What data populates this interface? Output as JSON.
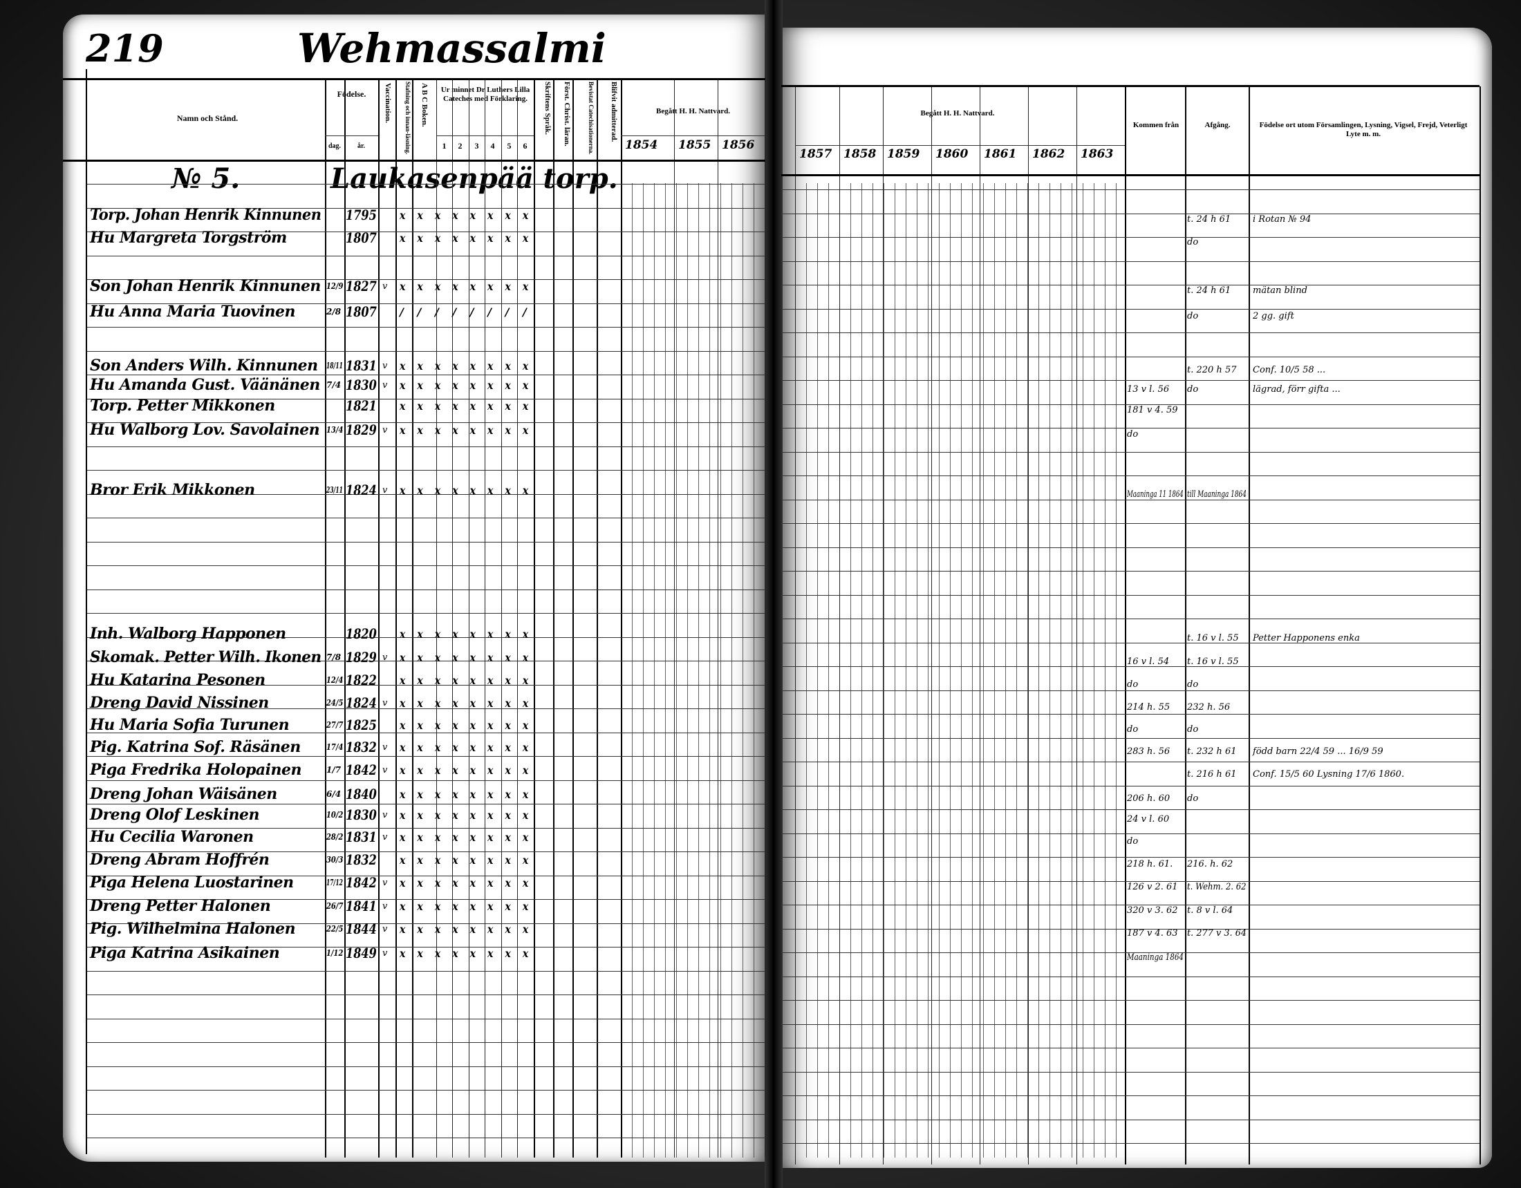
{
  "header": {
    "page_number": "219",
    "parish": "Wehmassalmi",
    "household_number": "№ 5.",
    "household_place": "Laukasenpää torp."
  },
  "left_columns": {
    "name": "Namn och Stånd.",
    "birth": "Födelse.",
    "birth_day": "dag.",
    "birth_year": "år.",
    "vaccination": "Vaccination.",
    "reading": "Stafning och innan-läsning.",
    "abc": "A B C Boken.",
    "catechism": "Ur minnet Dr Luthers Lilla Cateches med Förklaring.",
    "catechism_parts": [
      "1",
      "2",
      "3",
      "4",
      "5",
      "6"
    ],
    "scripture": "Skriftens Språk.",
    "christianity": "Först. Christ. läran.",
    "confirmation_class": "Bevistat Catechisationerna.",
    "admitted": "Blifvit admitterad.",
    "communion": "Begått H. H. Nattvard.",
    "years": [
      "1854",
      "1855",
      "1856"
    ]
  },
  "right_columns": {
    "communion": "Begått H. H. Nattvard.",
    "years": [
      "1857",
      "1858",
      "1859",
      "1860",
      "1861",
      "1862",
      "1863"
    ],
    "arrived_from": "Kommen från",
    "departure": "Afgång.",
    "remarks": "Födelse ort utom Församlingen, Lysning, Vigsel, Frejd, Veterligt Lyte m. m."
  },
  "rows": [
    {
      "name": "Torp. Johan Henrik Kinnunen",
      "day": "",
      "year": "1795",
      "vacc": "",
      "marks": "x x x x x x x x",
      "arrived": "",
      "departed": "t. 24 h 61",
      "remark": "i Rotan № 94"
    },
    {
      "name": "Hu Margreta Torgström",
      "day": "",
      "year": "1807",
      "vacc": "",
      "marks": "x x x x x x x x",
      "arrived": "",
      "departed": "do",
      "remark": ""
    },
    {
      "name": "Son Johan Henrik Kinnunen",
      "day": "12/9",
      "year": "1827",
      "vacc": "v",
      "marks": "x x x x x x x x",
      "arrived": "",
      "departed": "t. 24 h 61",
      "remark": "mätan blind"
    },
    {
      "name": "Hu Anna Maria Tuovinen",
      "day": "2/8",
      "year": "1807",
      "vacc": "",
      "marks": "/ / / / / / / /",
      "arrived": "",
      "departed": "do",
      "remark": "2 gg. gift"
    },
    {
      "name": "Son Anders Wilh. Kinnunen",
      "day": "18/11",
      "year": "1831",
      "vacc": "v",
      "marks": "x x x x x x x x",
      "arrived": "",
      "departed": "t. 220 h 57",
      "remark": "Conf. 10/5 58 ..."
    },
    {
      "name": "Hu Amanda Gust. Väänänen",
      "day": "7/4",
      "year": "1830",
      "vacc": "v",
      "marks": "x x x x x x x x",
      "arrived": "13 v l. 56",
      "departed": "do",
      "remark": "lägrad, förr gifta ..."
    },
    {
      "name": "Torp. Petter Mikkonen",
      "day": "",
      "year": "1821",
      "vacc": "",
      "marks": "x x x x x x x x",
      "arrived": "181 v 4. 59",
      "departed": "",
      "remark": ""
    },
    {
      "name": "Hu Walborg Lov. Savolainen",
      "day": "13/4",
      "year": "1829",
      "vacc": "v",
      "marks": "x x x x x x x x",
      "arrived": "do",
      "departed": "",
      "remark": ""
    },
    {
      "name": "Bror Erik Mikkonen",
      "day": "23/11",
      "year": "1824",
      "vacc": "v",
      "marks": "x x x x x x x x",
      "arrived": "Maaninga 11 1864",
      "departed": "till Maaninga 1864",
      "remark": ""
    },
    {
      "name": "Inh. Walborg Happonen",
      "day": "",
      "year": "1820",
      "vacc": "",
      "marks": "x x x x x x x x",
      "arrived": "",
      "departed": "t. 16 v l. 55",
      "remark": "Petter Happonens enka"
    },
    {
      "name": "Skomak. Petter Wilh. Ikonen",
      "day": "7/8",
      "year": "1829",
      "vacc": "v",
      "marks": "x x x x x x x x",
      "arrived": "16 v l. 54",
      "departed": "t. 16 v l. 55",
      "remark": ""
    },
    {
      "name": "Hu Katarina Pesonen",
      "day": "12/4",
      "year": "1822",
      "vacc": "",
      "marks": "x x x x x x x x",
      "arrived": "do",
      "departed": "do",
      "remark": ""
    },
    {
      "name": "Dreng David Nissinen",
      "day": "24/5",
      "year": "1824",
      "vacc": "v",
      "marks": "x x x x x x x x",
      "arrived": "214 h. 55",
      "departed": "232 h. 56",
      "remark": ""
    },
    {
      "name": "Hu Maria Sofia Turunen",
      "day": "27/7",
      "year": "1825",
      "vacc": "",
      "marks": "x x x x x x x x",
      "arrived": "do",
      "departed": "do",
      "remark": ""
    },
    {
      "name": "Pig. Katrina Sof. Räsänen",
      "day": "17/4",
      "year": "1832",
      "vacc": "v",
      "marks": "x x x x x x x x",
      "arrived": "283 h. 56",
      "departed": "t. 232 h 61",
      "remark": "född barn 22/4 59 ... 16/9 59"
    },
    {
      "name": "Piga Fredrika Holopainen",
      "day": "1/7",
      "year": "1842",
      "vacc": "v",
      "marks": "x x x x x x x x",
      "arrived": "",
      "departed": "t. 216 h 61",
      "remark": "Conf. 15/5 60 Lysning 17/6 1860."
    },
    {
      "name": "Dreng Johan Wäisänen",
      "day": "6/4",
      "year": "1840",
      "vacc": "",
      "marks": "x x x x x x x x",
      "arrived": "206 h. 60",
      "departed": "do",
      "remark": ""
    },
    {
      "name": "Dreng Olof Leskinen",
      "day": "10/2",
      "year": "1830",
      "vacc": "v",
      "marks": "x x x x x x x x",
      "arrived": "24 v l. 60",
      "departed": "",
      "remark": ""
    },
    {
      "name": "Hu Cecilia Waronen",
      "day": "28/2",
      "year": "1831",
      "vacc": "v",
      "marks": "x x x x x x x x",
      "arrived": "do",
      "departed": "",
      "remark": ""
    },
    {
      "name": "Dreng Abram Hoffrén",
      "day": "30/3",
      "year": "1832",
      "vacc": "",
      "marks": "x x x x x x x x",
      "arrived": "218 h. 61.",
      "departed": "216. h. 62",
      "remark": ""
    },
    {
      "name": "Piga Helena Luostarinen",
      "day": "17/12",
      "year": "1842",
      "vacc": "v",
      "marks": "x x x x x x x x",
      "arrived": "126 v 2. 61",
      "departed": "t. Wehm. 2. 62",
      "remark": ""
    },
    {
      "name": "Dreng Petter Halonen",
      "day": "26/7",
      "year": "1841",
      "vacc": "v",
      "marks": "x x x x x x x x",
      "arrived": "320 v 3. 62",
      "departed": "t. 8 v l. 64",
      "remark": ""
    },
    {
      "name": "Pig. Wilhelmina Halonen",
      "day": "22/5",
      "year": "1844",
      "vacc": "v",
      "marks": "x x x x x x x x",
      "arrived": "187 v 4. 63",
      "departed": "t. 277 v 3. 64",
      "remark": ""
    },
    {
      "name": "Piga Katrina Asikainen",
      "day": "1/12",
      "year": "1849",
      "vacc": "v",
      "marks": "x x x x x x x x",
      "arrived": "Maaninga 1864",
      "departed": "",
      "remark": ""
    }
  ]
}
